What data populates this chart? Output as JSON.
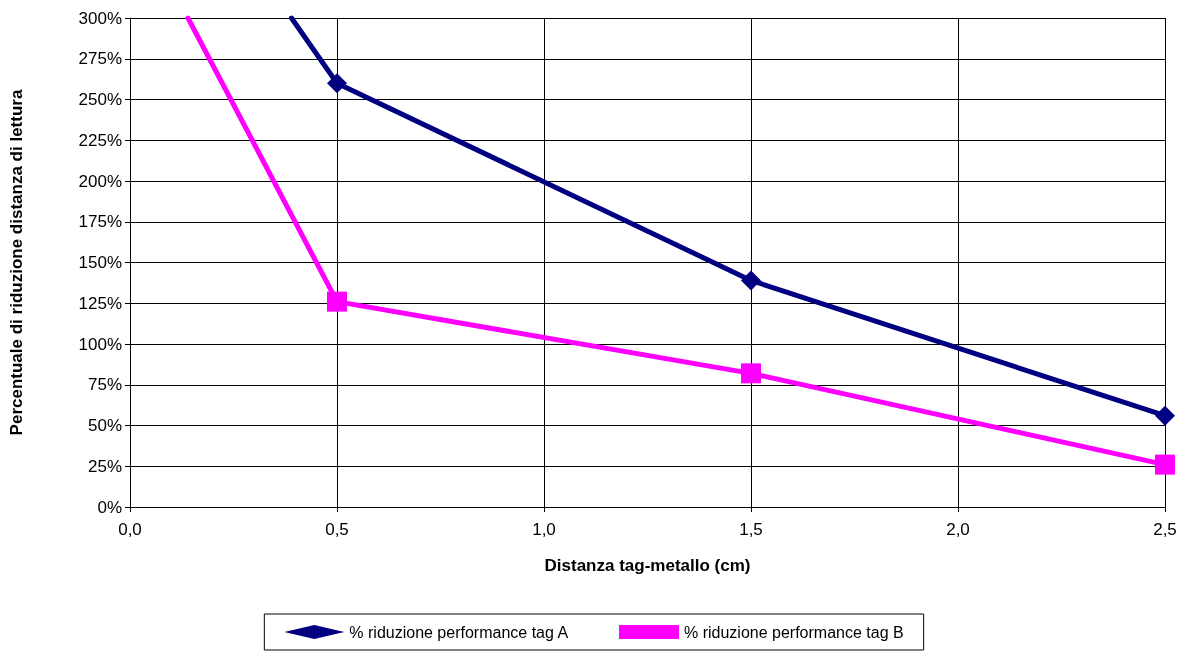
{
  "chart_data": {
    "type": "line",
    "xlabel": "Distanza tag-metallo (cm)",
    "ylabel": "Percentuale di riduzione distanza di lettura",
    "series": [
      {
        "name": "% riduzione performance tag A",
        "color": "#000080",
        "marker": "diamond",
        "x": [
          0.39,
          0.5,
          1.5,
          2.5
        ],
        "values": [
          300,
          260,
          139,
          56
        ]
      },
      {
        "name": "% riduzione performance tag B",
        "color": "#ff00ff",
        "marker": "square",
        "x": [
          0.14,
          0.5,
          1.5,
          2.5
        ],
        "values": [
          300,
          126,
          82,
          26
        ]
      }
    ],
    "xlim": [
      0,
      2.5
    ],
    "xticks": [
      {
        "value": 0,
        "label": "0,0"
      },
      {
        "value": 0.5,
        "label": "0,5"
      },
      {
        "value": 1,
        "label": "1,0"
      },
      {
        "value": 1.5,
        "label": "1,5"
      },
      {
        "value": 2,
        "label": "2,0"
      },
      {
        "value": 2.5,
        "label": "2,5"
      }
    ],
    "ylim": [
      0,
      300
    ],
    "yticks": [
      {
        "value": 0,
        "label": "0%"
      },
      {
        "value": 25,
        "label": "25%"
      },
      {
        "value": 50,
        "label": "50%"
      },
      {
        "value": 75,
        "label": "75%"
      },
      {
        "value": 100,
        "label": "100%"
      },
      {
        "value": 125,
        "label": "125%"
      },
      {
        "value": 150,
        "label": "150%"
      },
      {
        "value": 175,
        "label": "175%"
      },
      {
        "value": 200,
        "label": "200%"
      },
      {
        "value": 225,
        "label": "225%"
      },
      {
        "value": 250,
        "label": "250%"
      },
      {
        "value": 275,
        "label": "275%"
      },
      {
        "value": 300,
        "label": "300%"
      }
    ],
    "grid": true,
    "legend": "bottom",
    "line_style": "solid"
  }
}
